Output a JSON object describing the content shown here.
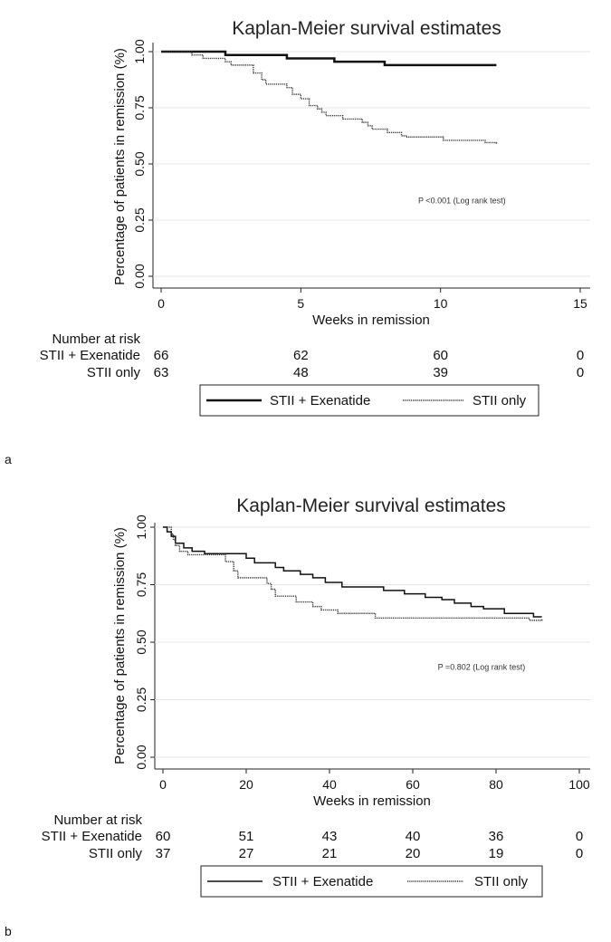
{
  "chart_data": [
    {
      "panel": "a",
      "type": "line",
      "title": "Kaplan-Meier survival estimates",
      "xlabel": "Weeks in remission",
      "ylabel": "Percentage of patients in remission (%)",
      "xlim": [
        0,
        15
      ],
      "ylim": [
        0,
        1
      ],
      "xticks": [
        0,
        5,
        10,
        15
      ],
      "yticks": [
        0.0,
        0.25,
        0.5,
        0.75,
        1.0
      ],
      "ytick_labels": [
        "0.00",
        "0.25",
        "0.50",
        "0.75",
        "1.00"
      ],
      "grid": true,
      "annotation": "P <0.001 (Log rank test)",
      "annotation_pos": [
        9.2,
        0.325
      ],
      "series": [
        {
          "name": "STII + Exenatide",
          "style": "solid",
          "steps": [
            [
              0,
              1.0
            ],
            [
              2.3,
              0.985
            ],
            [
              4.5,
              0.97
            ],
            [
              6.2,
              0.955
            ],
            [
              8.0,
              0.94
            ],
            [
              12.0,
              0.94
            ]
          ]
        },
        {
          "name": "STII only",
          "style": "dotted",
          "steps": [
            [
              0,
              1.0
            ],
            [
              1.1,
              0.985
            ],
            [
              1.5,
              0.97
            ],
            [
              2.3,
              0.955
            ],
            [
              2.5,
              0.94
            ],
            [
              3.3,
              0.905
            ],
            [
              3.6,
              0.875
            ],
            [
              3.75,
              0.855
            ],
            [
              4.5,
              0.84
            ],
            [
              4.7,
              0.81
            ],
            [
              5.0,
              0.79
            ],
            [
              5.3,
              0.76
            ],
            [
              5.6,
              0.745
            ],
            [
              5.75,
              0.73
            ],
            [
              5.9,
              0.715
            ],
            [
              6.5,
              0.7
            ],
            [
              7.2,
              0.685
            ],
            [
              7.4,
              0.67
            ],
            [
              7.55,
              0.655
            ],
            [
              8.1,
              0.64
            ],
            [
              8.6,
              0.625
            ],
            [
              8.8,
              0.62
            ],
            [
              10.1,
              0.605
            ],
            [
              11.6,
              0.595
            ],
            [
              12.0,
              0.59
            ]
          ]
        }
      ],
      "risk_table": {
        "header": "Number at risk",
        "rows": [
          {
            "label": "STII + Exenatide",
            "values": [
              "66",
              "62",
              "60",
              "0"
            ]
          },
          {
            "label": "STII only",
            "values": [
              "63",
              "48",
              "39",
              "0"
            ]
          }
        ]
      },
      "legend": [
        {
          "label": "STII + Exenatide",
          "style": "solid"
        },
        {
          "label": "STII only",
          "style": "dotted"
        }
      ]
    },
    {
      "panel": "b",
      "type": "line",
      "title": "Kaplan-Meier survival estimates",
      "xlabel": "Weeks in remission",
      "ylabel": "Percentage of patients in remission (%)",
      "xlim": [
        0,
        100
      ],
      "ylim": [
        0,
        1
      ],
      "xticks": [
        0,
        20,
        40,
        60,
        80,
        100
      ],
      "yticks": [
        0.0,
        0.25,
        0.5,
        0.75,
        1.0
      ],
      "ytick_labels": [
        "0.00",
        "0.25",
        "0.50",
        "0.75",
        "1.00"
      ],
      "grid": true,
      "annotation": "P =0.802 (Log rank test)",
      "annotation_pos": [
        66,
        0.38
      ],
      "series": [
        {
          "name": "STII + Exenatide",
          "style": "solid",
          "steps": [
            [
              0,
              1.0
            ],
            [
              1,
              0.98
            ],
            [
              2,
              0.96
            ],
            [
              3,
              0.93
            ],
            [
              5,
              0.91
            ],
            [
              7,
              0.895
            ],
            [
              10,
              0.885
            ],
            [
              20,
              0.865
            ],
            [
              22,
              0.845
            ],
            [
              27,
              0.825
            ],
            [
              29,
              0.81
            ],
            [
              33,
              0.795
            ],
            [
              36,
              0.78
            ],
            [
              39,
              0.76
            ],
            [
              43,
              0.74
            ],
            [
              53,
              0.725
            ],
            [
              58,
              0.71
            ],
            [
              63,
              0.695
            ],
            [
              67,
              0.685
            ],
            [
              70,
              0.67
            ],
            [
              74,
              0.655
            ],
            [
              77,
              0.645
            ],
            [
              82,
              0.625
            ],
            [
              89,
              0.61
            ],
            [
              91,
              0.61
            ]
          ]
        },
        {
          "name": "STII only",
          "style": "dotted",
          "steps": [
            [
              0,
              1.0
            ],
            [
              2,
              0.97
            ],
            [
              2.5,
              0.945
            ],
            [
              3,
              0.92
            ],
            [
              4,
              0.895
            ],
            [
              6,
              0.88
            ],
            [
              15,
              0.85
            ],
            [
              17,
              0.81
            ],
            [
              18,
              0.78
            ],
            [
              25,
              0.755
            ],
            [
              26,
              0.73
            ],
            [
              27,
              0.7
            ],
            [
              32,
              0.675
            ],
            [
              36,
              0.655
            ],
            [
              38,
              0.64
            ],
            [
              42,
              0.625
            ],
            [
              51,
              0.605
            ],
            [
              88,
              0.595
            ],
            [
              91,
              0.6
            ]
          ]
        }
      ],
      "risk_table": {
        "header": "Number at risk",
        "rows": [
          {
            "label": "STII + Exenatide",
            "values": [
              "60",
              "51",
              "43",
              "40",
              "36",
              "0"
            ]
          },
          {
            "label": "STII only",
            "values": [
              "37",
              "27",
              "21",
              "20",
              "19",
              "0"
            ]
          }
        ]
      },
      "legend": [
        {
          "label": "STII + Exenatide",
          "style": "solid"
        },
        {
          "label": "STII only",
          "style": "dotted"
        }
      ]
    }
  ]
}
